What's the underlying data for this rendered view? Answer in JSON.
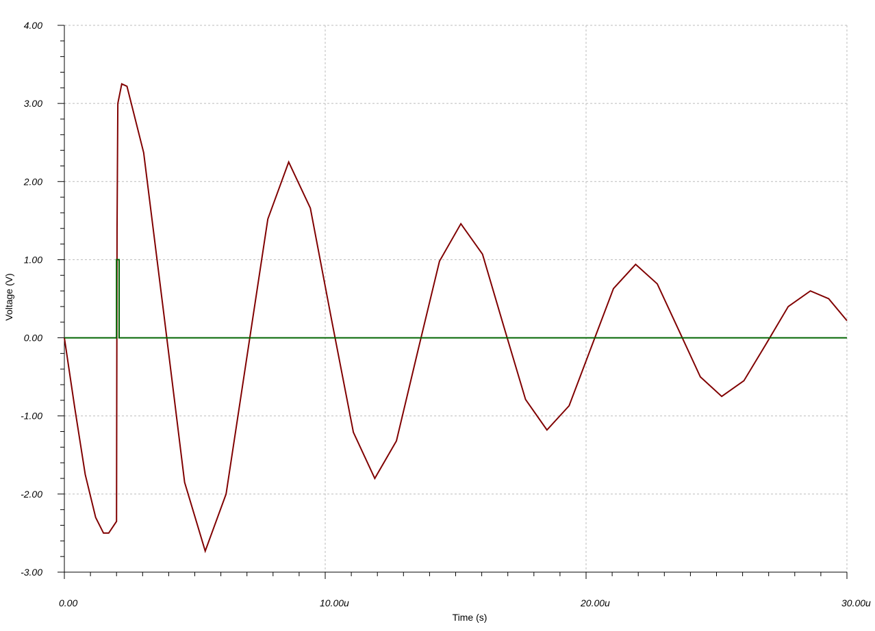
{
  "chart_data": {
    "type": "line",
    "x_label": "Time (s)",
    "y_label": "Voltage (V)",
    "xlim": [
      0,
      3e-05
    ],
    "ylim": [
      -3,
      4
    ],
    "xticks": [
      {
        "value": 0,
        "label": "0.00"
      },
      {
        "value": 1e-05,
        "label": "10.00u"
      },
      {
        "value": 2e-05,
        "label": "20.00u"
      },
      {
        "value": 3e-05,
        "label": "30.00u"
      }
    ],
    "yticks": [
      {
        "value": -3,
        "label": "-3.00"
      },
      {
        "value": -2,
        "label": "-2.00"
      },
      {
        "value": -1,
        "label": "-1.00"
      },
      {
        "value": 0,
        "label": "0.00"
      },
      {
        "value": 1,
        "label": "1.00"
      },
      {
        "value": 2,
        "label": "2.00"
      },
      {
        "value": 3,
        "label": "3.00"
      },
      {
        "value": 4,
        "label": "4.00"
      }
    ],
    "xminorticks": [
      1e-06,
      2e-06,
      3e-06,
      4e-06,
      5e-06,
      6e-06,
      7e-06,
      8e-06,
      9e-06,
      1.1e-05,
      1.2e-05,
      1.3e-05,
      1.4e-05,
      1.5e-05,
      1.6e-05,
      1.7e-05,
      1.8e-05,
      1.9e-05,
      2.1e-05,
      2.2e-05,
      2.3e-05,
      2.4e-05,
      2.5e-05,
      2.6e-05,
      2.7e-05,
      2.8e-05,
      2.9e-05
    ],
    "yminorticks": [
      -2.8,
      -2.6,
      -2.4,
      -2.2,
      -1.8,
      -1.6,
      -1.4,
      -1.2,
      -0.8,
      -0.6,
      -0.4,
      -0.2,
      0.2,
      0.4,
      0.6,
      0.8,
      1.2,
      1.4,
      1.6,
      1.8,
      2.2,
      2.4,
      2.6,
      2.8,
      3.2,
      3.4,
      3.6,
      3.8
    ],
    "grid": true,
    "series": [
      {
        "color": "#800000",
        "x": [
          0,
          4e-07,
          8e-07,
          1.2e-06,
          1.5e-06,
          1.7e-06,
          2e-06,
          2.02e-06,
          2.05e-06,
          2.2e-06,
          2.4e-06,
          3.04e-06,
          3.83e-06,
          4.61e-06,
          5.4e-06,
          6.2e-06,
          7e-06,
          7.8e-06,
          8.6e-06,
          9.43e-06,
          1.025e-05,
          1.108e-05,
          1.19e-05,
          1.273e-05,
          1.355e-05,
          1.438e-05,
          1.52e-05,
          1.603e-05,
          1.685e-05,
          1.768e-05,
          1.85e-05,
          1.935e-05,
          2.02e-05,
          2.105e-05,
          2.19e-05,
          2.273e-05,
          2.355e-05,
          2.438e-05,
          2.52e-05,
          2.605e-05,
          2.69e-05,
          2.775e-05,
          2.86e-05,
          2.93e-05,
          3e-05
        ],
        "values": [
          0,
          -0.9,
          -1.75,
          -2.3,
          -2.5,
          -2.5,
          -2.35,
          1.4,
          3.0,
          3.25,
          3.22,
          2.37,
          0.26,
          -1.85,
          -2.73,
          -2.0,
          -0.24,
          1.52,
          2.25,
          1.66,
          0.22,
          -1.21,
          -1.8,
          -1.32,
          -0.17,
          0.98,
          1.46,
          1.07,
          0.14,
          -0.79,
          -1.18,
          -0.87,
          -0.12,
          0.63,
          0.94,
          0.69,
          0.1,
          -0.5,
          -0.75,
          -0.55,
          -0.08,
          0.4,
          0.6,
          0.5,
          0.22
        ]
      },
      {
        "color": "#006400",
        "x": [
          0,
          2e-06,
          2e-06,
          2.1e-06,
          2.1e-06,
          3e-05
        ],
        "values": [
          0,
          0,
          1,
          1,
          0,
          0
        ]
      }
    ]
  }
}
